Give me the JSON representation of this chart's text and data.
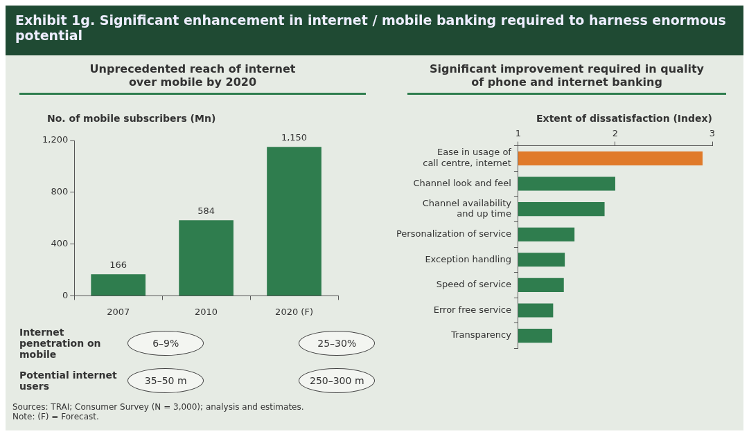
{
  "chart_data": [
    {
      "type": "bar",
      "title": "Exhibit 1g. Significant enhancement in internet / mobile banking required to harness enormous potential",
      "subtitle": "Unprecedented reach of internet\nover mobile by 2020",
      "ylabel": "No. of mobile subscribers (Mn)",
      "categories": [
        "2007",
        "2010",
        "2020 (F)"
      ],
      "values": [
        166,
        584,
        1150
      ],
      "value_labels": [
        "166",
        "584",
        "1,150"
      ],
      "color": "#2f7d4e",
      "ylim": [
        0,
        1200
      ],
      "yticks": [
        0,
        400,
        800,
        {
          "value": 1200,
          "label": "1,200"
        }
      ],
      "grid": false,
      "annotations": [
        "Internet penetration on mobile",
        "6–9%",
        "25–30%",
        "Potential internet users",
        "35–50 m",
        "250–300 m",
        "Sources: TRAI; Consumer Survey (N = 3,000); analysis and estimates.",
        "Note: (F) = Forecast."
      ]
    },
    {
      "type": "bar",
      "orientation": "horizontal",
      "subtitle": "Significant improvement required in quality\nof phone and internet banking",
      "xlabel": "Extent of dissatisfaction (Index)",
      "categories": [
        "Ease in usage of\ncall centre, internet",
        "Channel look and feel",
        "Channel availability\nand up time",
        "Personalization of service",
        "Exception handling",
        "Speed of service",
        "Error free service",
        "Transparency"
      ],
      "values": [
        2.9,
        2.0,
        1.89,
        1.58,
        1.48,
        1.47,
        1.36,
        1.35
      ],
      "colors": [
        "#e07a2a",
        "#2f7d4e",
        "#2f7d4e",
        "#2f7d4e",
        "#2f7d4e",
        "#2f7d4e",
        "#2f7d4e",
        "#2f7d4e"
      ],
      "xlim": [
        1,
        3
      ],
      "xticks": [
        1,
        2,
        3
      ],
      "grid": false
    }
  ]
}
